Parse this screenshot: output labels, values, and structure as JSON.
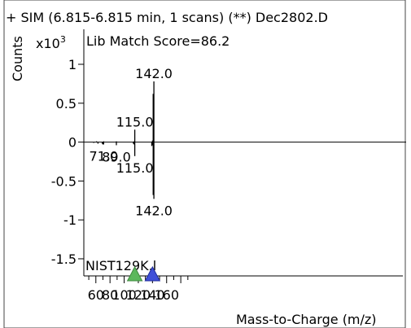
{
  "header": {
    "title": "+ SIM (6.815-6.815 min, 1 scans) (**) Dec2802.D",
    "score": "Lib Match Score=86.2",
    "library": "NIST129K.l"
  },
  "chart_data": {
    "type": "bar",
    "ylabel": "Counts",
    "ymultiplier_base": "x10",
    "ymultiplier_exp": "3",
    "xlabel": "Mass-to-Charge (m/z)",
    "xlim": [
      43,
      503
    ],
    "ylim": [
      -1.72,
      1.45
    ],
    "xticks": [
      60,
      80,
      100,
      120,
      140,
      160
    ],
    "yticks": [
      1,
      0.5,
      0,
      -0.5,
      -1,
      -1.5
    ],
    "ytick_labels": [
      "1",
      "0.5",
      "0",
      "-0.5",
      "-1",
      "-1.5"
    ],
    "series": [
      {
        "role": "sample",
        "points": [
          {
            "x": 61,
            "y": 0.01
          },
          {
            "x": 71,
            "y": 0.01
          },
          {
            "x": 89,
            "y": 0.01
          },
          {
            "x": 114,
            "y": 0.01
          },
          {
            "x": 115,
            "y": 0.16
          },
          {
            "x": 140,
            "y": 0.02
          },
          {
            "x": 141,
            "y": 0.62
          },
          {
            "x": 142,
            "y": 0.78
          }
        ]
      },
      {
        "role": "library",
        "points": [
          {
            "x": 57,
            "y": -0.01
          },
          {
            "x": 63,
            "y": -0.02
          },
          {
            "x": 69,
            "y": -0.02
          },
          {
            "x": 70,
            "y": -0.03
          },
          {
            "x": 71,
            "y": -0.03
          },
          {
            "x": 89,
            "y": -0.04
          },
          {
            "x": 113,
            "y": -0.02
          },
          {
            "x": 114,
            "y": -0.03
          },
          {
            "x": 115,
            "y": -0.18
          },
          {
            "x": 139,
            "y": -0.05
          },
          {
            "x": 140,
            "y": -0.04
          },
          {
            "x": 141,
            "y": -0.68
          },
          {
            "x": 142,
            "y": -0.73
          }
        ]
      }
    ],
    "peak_labels": [
      {
        "x": 142,
        "y": 0.78,
        "text": "142.0",
        "pos": "above"
      },
      {
        "x": 115,
        "y": 0.16,
        "text": "115.0",
        "pos": "above"
      },
      {
        "x": 71,
        "y": -0.03,
        "text": "71.0",
        "pos": "below"
      },
      {
        "x": 89,
        "y": -0.04,
        "text": "89.0",
        "pos": "below"
      },
      {
        "x": 115,
        "y": -0.18,
        "text": "115.0",
        "pos": "below"
      },
      {
        "x": 142,
        "y": -0.73,
        "text": "142.0",
        "pos": "below"
      }
    ],
    "markers": [
      {
        "x": 115,
        "color": "#5cb85c",
        "stroke": "#3f8a3f"
      },
      {
        "x": 140,
        "color": "#3f4fd8",
        "stroke": "#1f2b9a"
      }
    ]
  }
}
